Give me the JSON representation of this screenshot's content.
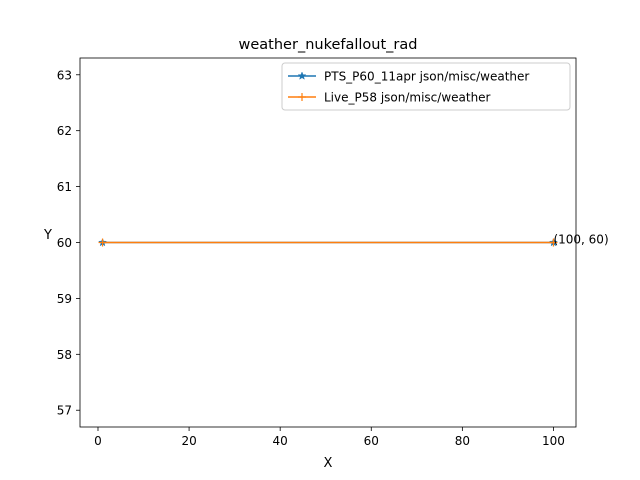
{
  "chart_data": {
    "type": "line",
    "title": "weather_nukefallout_rad",
    "xlabel": "X",
    "ylabel": "Y",
    "xlim": [
      -3.95,
      104.95
    ],
    "ylim": [
      56.7,
      63.3
    ],
    "xticks": [
      0,
      20,
      40,
      60,
      80,
      100
    ],
    "yticks": [
      57,
      58,
      59,
      60,
      61,
      62,
      63
    ],
    "legend_position": "top-right",
    "grid": false,
    "series": [
      {
        "name": "PTS_P60_11apr json/misc/weather",
        "color": "#1f77b4",
        "marker": "star",
        "x": [
          1,
          100
        ],
        "y": [
          60,
          60
        ]
      },
      {
        "name": "Live_P58 json/misc/weather",
        "color": "#ff7f0e",
        "marker": "plus",
        "x": [
          1,
          100
        ],
        "y": [
          60,
          60
        ]
      }
    ],
    "annotations": [
      {
        "text": "(100, 60)",
        "x": 100,
        "y": 60
      }
    ]
  }
}
